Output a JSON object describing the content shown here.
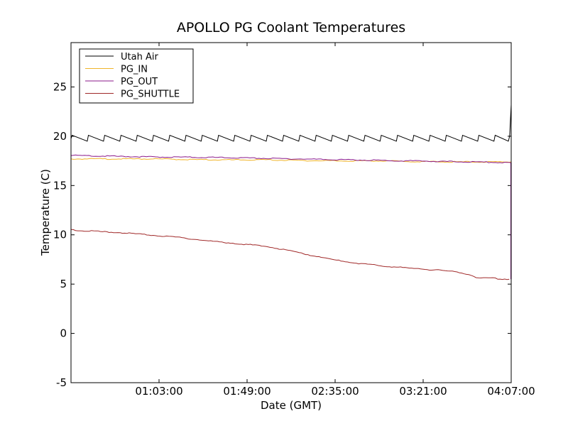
{
  "chart_data": {
    "type": "line",
    "title": "APOLLO PG Coolant Temperatures",
    "xlabel": "Date (GMT)",
    "ylabel": "Temperature (C)",
    "xlim_minutes": [
      17,
      247
    ],
    "ylim": [
      -5,
      29.5
    ],
    "x_ticks": [
      {
        "minutes": 63,
        "label": "01:03:00"
      },
      {
        "minutes": 109,
        "label": "01:49:00"
      },
      {
        "minutes": 155,
        "label": "02:35:00"
      },
      {
        "minutes": 201,
        "label": "03:21:00"
      },
      {
        "minutes": 247,
        "label": "04:07:00"
      }
    ],
    "y_ticks": [
      {
        "value": -5,
        "label": "-5"
      },
      {
        "value": 0,
        "label": "0"
      },
      {
        "value": 5,
        "label": "5"
      },
      {
        "value": 10,
        "label": "10"
      },
      {
        "value": 15,
        "label": "15"
      },
      {
        "value": 20,
        "label": "20"
      },
      {
        "value": 25,
        "label": "25"
      }
    ],
    "legend_position": "top-left",
    "series": [
      {
        "name": "Utah Air",
        "color": "#000000",
        "pattern": "sawtooth",
        "cycle_minutes": 8.5,
        "low": 19.5,
        "high": 20.1,
        "end_spike": 23.2,
        "end_minute": 247
      },
      {
        "name": "PG_IN",
        "color": "#f0b429",
        "x": [
          17,
          30,
          60,
          90,
          120,
          150,
          180,
          210,
          240,
          247
        ],
        "values": [
          17.7,
          17.7,
          17.7,
          17.6,
          17.6,
          17.5,
          17.5,
          17.4,
          17.4,
          17.4
        ]
      },
      {
        "name": "PG_OUT",
        "color": "#8b1a8b",
        "x": [
          17,
          30,
          60,
          90,
          120,
          150,
          180,
          210,
          240,
          247
        ],
        "values": [
          18.05,
          18.0,
          17.9,
          17.85,
          17.75,
          17.65,
          17.55,
          17.45,
          17.35,
          17.3
        ]
      },
      {
        "name": "PG_SHUTTLE",
        "color": "#a02828",
        "x": [
          17,
          30,
          45,
          60,
          75,
          90,
          105,
          120,
          135,
          150,
          165,
          180,
          195,
          210,
          220,
          226,
          230,
          235,
          240,
          246
        ],
        "values": [
          10.5,
          10.35,
          10.2,
          9.95,
          9.7,
          9.35,
          9.1,
          8.8,
          8.25,
          7.6,
          7.15,
          6.85,
          6.6,
          6.4,
          6.2,
          5.9,
          5.6,
          5.65,
          5.55,
          5.5
        ]
      }
    ]
  }
}
